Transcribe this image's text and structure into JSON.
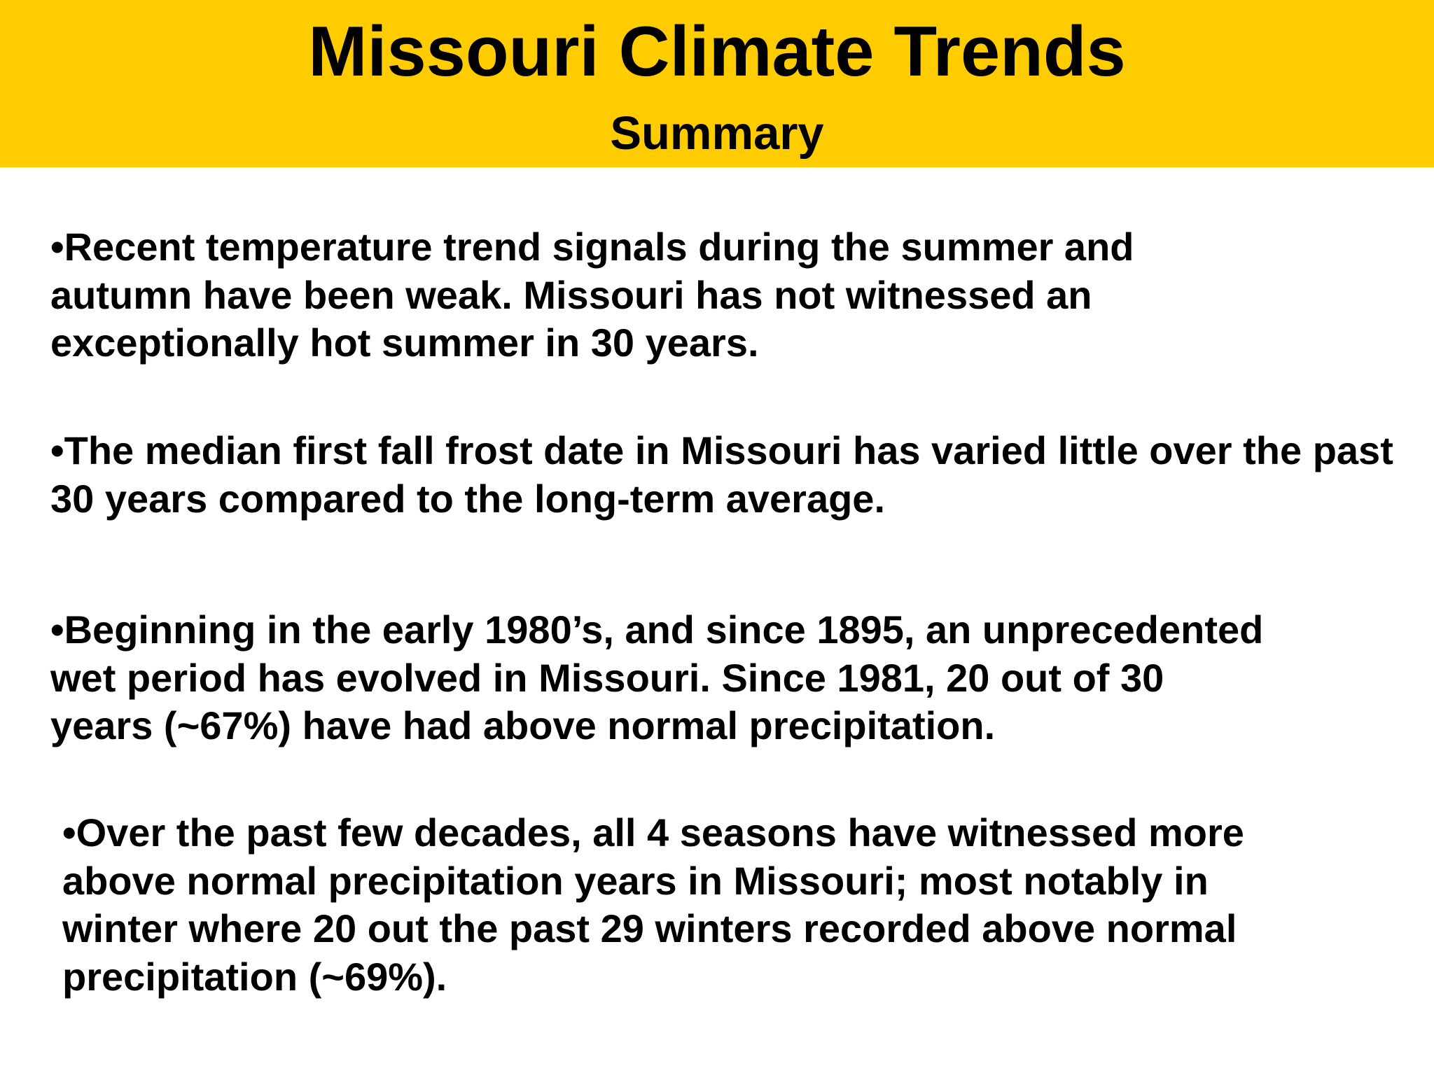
{
  "header": {
    "title": "Missouri Climate Trends",
    "subtitle": "Summary"
  },
  "bullets": [
    {
      "lines": [
        "•Recent temperature trend signals during the summer and",
        "autumn have been weak. Missouri has not witnessed an",
        "exceptionally hot summer in 30 years."
      ]
    },
    {
      "lines": [
        "•The median first fall frost date in Missouri has varied little over the past",
        "30 years compared to the long-term average."
      ]
    },
    {
      "lines": [
        "•Beginning in the early 1980’s, and since 1895, an unprecedented",
        "wet period has evolved in Missouri. Since 1981, 20 out of 30",
        "years (~67%) have had above normal precipitation."
      ]
    },
    {
      "lines": [
        "•Over the past few decades, all 4 seasons have witnessed more",
        "above normal precipitation years in Missouri; most notably in",
        "winter where 20 out the past 29 winters recorded above normal",
        "precipitation (~69%)."
      ]
    }
  ]
}
